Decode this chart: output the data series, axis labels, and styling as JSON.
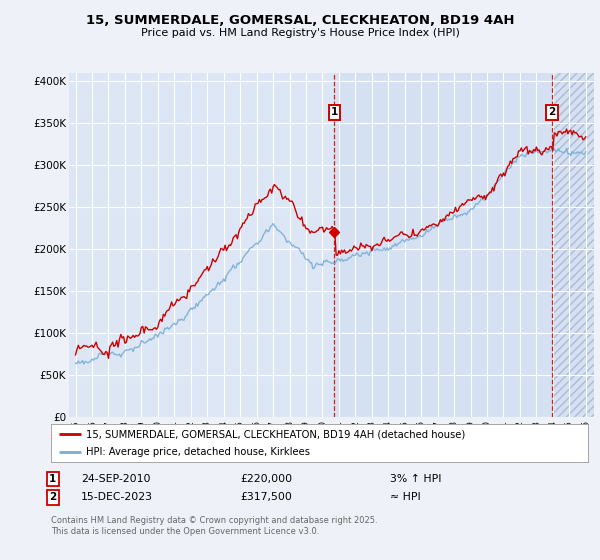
{
  "title": "15, SUMMERDALE, GOMERSAL, CLECKHEATON, BD19 4AH",
  "subtitle": "Price paid vs. HM Land Registry's House Price Index (HPI)",
  "bg_color": "#eef2f8",
  "plot_bg_color": "#dce6f5",
  "plot_bg_color2": "#cddcef",
  "grid_color": "#ffffff",
  "ylabel_ticks": [
    "£0",
    "£50K",
    "£100K",
    "£150K",
    "£200K",
    "£250K",
    "£300K",
    "£350K",
    "£400K"
  ],
  "ylabel_values": [
    0,
    50000,
    100000,
    150000,
    200000,
    250000,
    300000,
    350000,
    400000
  ],
  "ylim": [
    0,
    410000
  ],
  "x_start_year": 1995,
  "x_end_year": 2026,
  "sale1_date": "24-SEP-2010",
  "sale1_price": 220000,
  "sale1_label": "3% ↑ HPI",
  "sale2_date": "15-DEC-2023",
  "sale2_price": 317500,
  "sale2_label": "≈ HPI",
  "sale1_x": 2010.73,
  "sale2_x": 2023.96,
  "line1_color": "#cc0000",
  "line2_color": "#7aaed6",
  "legend1": "15, SUMMERDALE, GOMERSAL, CLECKHEATON, BD19 4AH (detached house)",
  "legend2": "HPI: Average price, detached house, Kirklees",
  "footer": "Contains HM Land Registry data © Crown copyright and database right 2025.\nThis data is licensed under the Open Government Licence v3.0.",
  "sale1_marker_label": "1",
  "sale2_marker_label": "2"
}
